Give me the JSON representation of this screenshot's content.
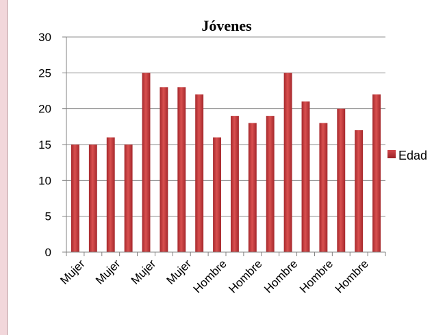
{
  "chart_data": {
    "type": "bar",
    "title": "Jóvenes",
    "xlabel": "",
    "ylabel": "",
    "ylim": [
      0,
      30
    ],
    "yticks": [
      0,
      5,
      10,
      15,
      20,
      25,
      30
    ],
    "grid": true,
    "legend": "right",
    "categories": [
      "Mujer",
      "Mujer",
      "Mujer",
      "Mujer",
      "Mujer",
      "Mujer",
      "Mujer",
      "Mujer",
      "Hombre",
      "Hombre",
      "Hombre",
      "Hombre",
      "Hombre",
      "Hombre",
      "Hombre",
      "Hombre",
      "Hombre",
      "Hombre"
    ],
    "visible_tick_labels": [
      "Mujer",
      "Mujer",
      "Mujer",
      "Mujer",
      "Hombre",
      "Hombre",
      "Hombre",
      "Hombre",
      "Hombre"
    ],
    "series": [
      {
        "name": "Edad",
        "color": "#c0383c",
        "values": [
          15,
          15,
          16,
          15,
          25,
          23,
          23,
          22,
          16,
          19,
          18,
          19,
          25,
          21,
          18,
          20,
          17,
          22
        ]
      }
    ]
  }
}
